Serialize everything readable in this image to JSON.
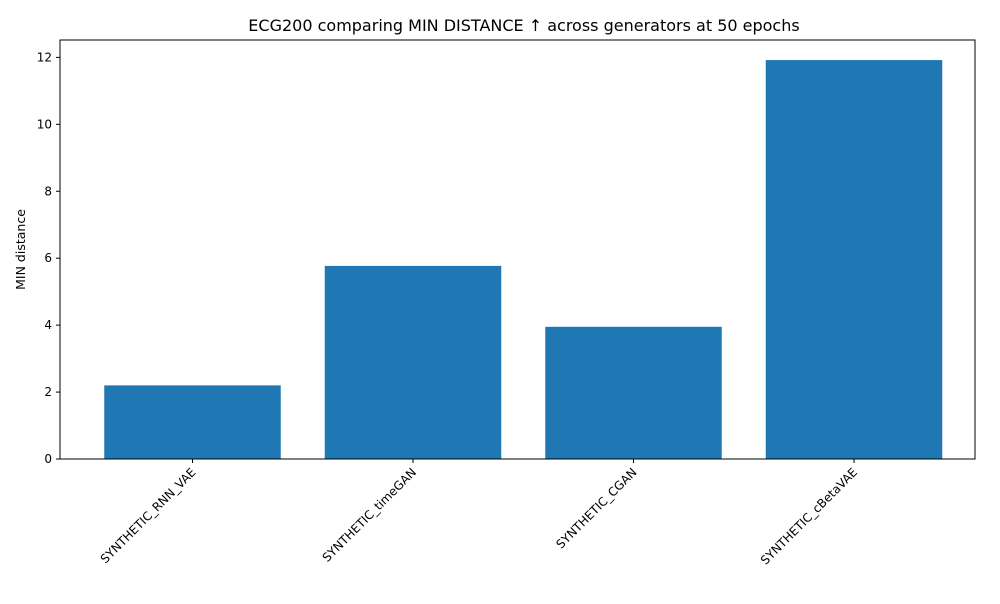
{
  "chart_data": {
    "type": "bar",
    "title": "ECG200 comparing MIN DISTANCE ↑  across generators at 50 epochs",
    "xlabel": "",
    "ylabel": "MIN distance",
    "categories": [
      "SYNTHETIC_RNN_VAE",
      "SYNTHETIC_timeGAN",
      "SYNTHETIC_CGAN",
      "SYNTHETIC_cBetaVAE"
    ],
    "values": [
      2.2,
      5.77,
      3.95,
      11.92
    ],
    "ylim": [
      0,
      12.52
    ],
    "yticks": [
      0,
      2,
      4,
      6,
      8,
      10,
      12
    ],
    "bar_color": "#1f77b4",
    "grid": false,
    "legend": "none"
  }
}
